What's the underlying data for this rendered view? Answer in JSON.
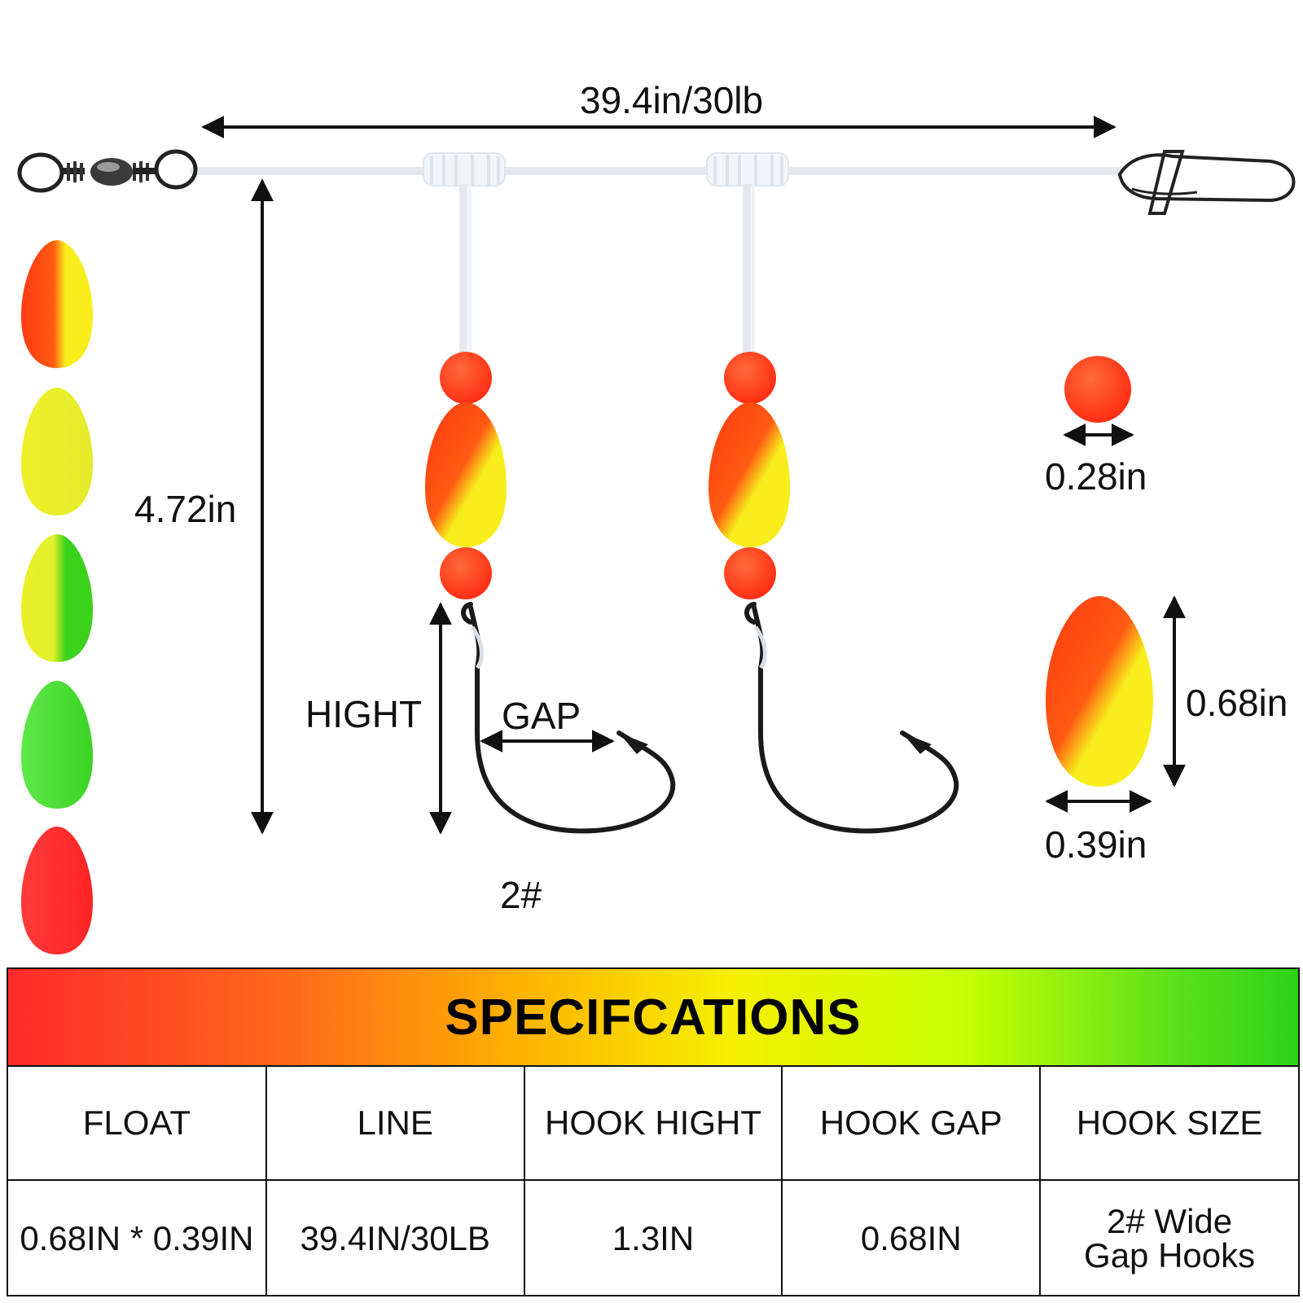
{
  "diagram": {
    "line_length_label": "39.4in/30lb",
    "leader_height_label": "4.72in",
    "hook_height_label": "HIGHT",
    "hook_gap_label": "GAP",
    "hook_size_label": "2#",
    "bead_diameter_label": "0.28in",
    "float_length_label": "0.68in",
    "float_width_label": "0.39in",
    "float_color_options": [
      {
        "name": "orange-yellow",
        "left": "#ff3a12",
        "right": "#f7ee1c"
      },
      {
        "name": "yellow",
        "left": "#eef02a",
        "right": "#eef02a"
      },
      {
        "name": "yellow-green",
        "left": "#eaf02a",
        "right": "#3ad21a"
      },
      {
        "name": "green",
        "left": "#4fe23a",
        "right": "#4fe23a"
      },
      {
        "name": "red",
        "left": "#ff2d2d",
        "right": "#ff2d2d"
      }
    ],
    "colors": {
      "bead": "#ff2a12",
      "line": "#e4e9ee",
      "hook": "#1a1a1a",
      "arrow": "#111111"
    }
  },
  "specifications": {
    "title": "SPECIFCATIONS",
    "columns": [
      "FLOAT",
      "LINE",
      "HOOK HIGHT",
      "HOOK GAP",
      "HOOK SIZE"
    ],
    "values": [
      "0.68IN * 0.39IN",
      "39.4IN/30LB",
      "1.3IN",
      "0.68IN",
      "2# Wide Gap Hooks"
    ]
  }
}
